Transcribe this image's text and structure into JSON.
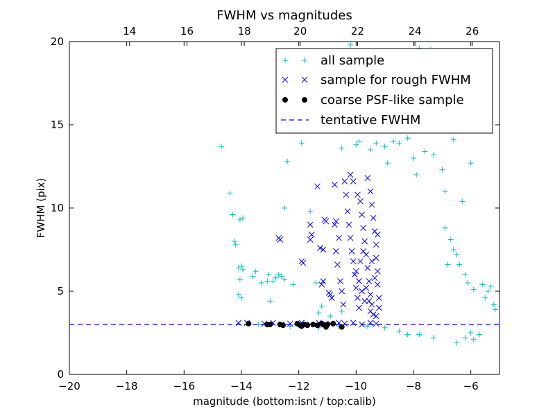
{
  "chart_data": {
    "type": "scatter",
    "title": "FWHM vs magnitudes",
    "xlabel": "magnitude (bottom:isnt / top:calib)",
    "ylabel": "FWHM (pix)",
    "xlim": [
      -20,
      -5
    ],
    "ylim": [
      0,
      20
    ],
    "x_ticks": [
      -20,
      -18,
      -16,
      -14,
      -12,
      -10,
      -8,
      -6
    ],
    "x_tick_labels": [
      "−20",
      "−18",
      "−16",
      "−14",
      "−12",
      "−10",
      "−8",
      "−6"
    ],
    "y_ticks": [
      0,
      5,
      10,
      15,
      20
    ],
    "y_tick_labels": [
      "0",
      "5",
      "10",
      "15",
      "20"
    ],
    "top_axis_ticks": [
      {
        "mag": -17.9,
        "label": "14"
      },
      {
        "mag": -15.9,
        "label": "16"
      },
      {
        "mag": -13.9,
        "label": "18"
      },
      {
        "mag": -11.95,
        "label": "20"
      },
      {
        "mag": -9.95,
        "label": "22"
      },
      {
        "mag": -7.95,
        "label": "24"
      },
      {
        "mag": -5.95,
        "label": "26"
      }
    ],
    "legend_position": "top-right",
    "grid": false,
    "tentative_fwhm": 3.0,
    "series": [
      {
        "name": "all sample",
        "marker": "+",
        "color": "#00bfbf",
        "points": [
          [
            -14.7,
            13.7
          ],
          [
            -14.4,
            10.9
          ],
          [
            -14.3,
            9.6
          ],
          [
            -14.2,
            7.8
          ],
          [
            -14.25,
            8.0
          ],
          [
            -14.1,
            6.4
          ],
          [
            -14.0,
            6.5
          ],
          [
            -13.95,
            6.3
          ],
          [
            -14.05,
            5.7
          ],
          [
            -14.1,
            4.8
          ],
          [
            -14.0,
            4.6
          ],
          [
            -14.05,
            9.3
          ],
          [
            -13.95,
            9.4
          ],
          [
            -13.6,
            5.9
          ],
          [
            -13.5,
            6.2
          ],
          [
            -13.3,
            5.5
          ],
          [
            -13.1,
            5.6
          ],
          [
            -13.05,
            6.0
          ],
          [
            -13.0,
            4.4
          ],
          [
            -12.8,
            5.8
          ],
          [
            -12.6,
            5.9
          ],
          [
            -12.5,
            5.7
          ],
          [
            -12.7,
            6.0
          ],
          [
            -12.9,
            5.6
          ],
          [
            -11.9,
            13.9
          ],
          [
            -12.4,
            12.8
          ],
          [
            -12.5,
            10.0
          ],
          [
            -11.6,
            9.8
          ],
          [
            -12.2,
            5.4
          ],
          [
            -11.4,
            5.5
          ],
          [
            -11.2,
            4.1
          ],
          [
            -10.5,
            3.8
          ],
          [
            -10.9,
            3.5
          ],
          [
            -11.3,
            3.7
          ],
          [
            -10.2,
            19.8
          ],
          [
            -9.7,
            15.9
          ],
          [
            -9.9,
            14.0
          ],
          [
            -9.5,
            13.5
          ],
          [
            -9.3,
            13.9
          ],
          [
            -9.0,
            13.7
          ],
          [
            -8.7,
            14.0
          ],
          [
            -8.5,
            13.9
          ],
          [
            -8.2,
            14.2
          ],
          [
            -8.0,
            13.0
          ],
          [
            -7.6,
            13.4
          ],
          [
            -7.3,
            13.2
          ],
          [
            -7.0,
            12.3
          ],
          [
            -6.6,
            14.1
          ],
          [
            -6.3,
            10.4
          ],
          [
            -6.0,
            12.7
          ],
          [
            -7.8,
            19.6
          ],
          [
            -7.4,
            19.5
          ],
          [
            -7.2,
            18.9
          ],
          [
            -8.4,
            17.0
          ],
          [
            -9.2,
            16.2
          ],
          [
            -10.0,
            13.8
          ],
          [
            -10.5,
            13.6
          ],
          [
            -8.9,
            12.7
          ],
          [
            -7.9,
            12.0
          ],
          [
            -6.9,
            11.0
          ],
          [
            -6.9,
            8.8
          ],
          [
            -6.7,
            8.1
          ],
          [
            -6.6,
            7.5
          ],
          [
            -6.5,
            7.2
          ],
          [
            -6.8,
            6.6
          ],
          [
            -6.4,
            6.6
          ],
          [
            -6.2,
            6.0
          ],
          [
            -6.1,
            5.5
          ],
          [
            -5.9,
            5.1
          ],
          [
            -5.6,
            5.4
          ],
          [
            -5.4,
            5.0
          ],
          [
            -5.3,
            5.3
          ],
          [
            -5.2,
            4.2
          ],
          [
            -5.15,
            3.9
          ],
          [
            -5.5,
            4.6
          ],
          [
            -5.7,
            2.4
          ],
          [
            -6.0,
            2.5
          ],
          [
            -6.2,
            2.2
          ],
          [
            -6.5,
            1.9
          ],
          [
            -5.9,
            2.1
          ],
          [
            -7.3,
            2.2
          ],
          [
            -7.8,
            2.4
          ],
          [
            -8.2,
            2.4
          ],
          [
            -8.5,
            2.6
          ],
          [
            -9.0,
            2.8
          ],
          [
            -9.6,
            2.9
          ],
          [
            -10.6,
            2.9
          ],
          [
            -11.3,
            2.8
          ],
          [
            -12.3,
            2.9
          ],
          [
            -13.4,
            3.0
          ]
        ]
      },
      {
        "name": "sample for rough FWHM",
        "marker": "x",
        "color": "#0000ff",
        "points": [
          [
            -14.1,
            3.1
          ],
          [
            -13.8,
            3.1
          ],
          [
            -13.2,
            3.05
          ],
          [
            -12.9,
            3.1
          ],
          [
            -12.6,
            3.0
          ],
          [
            -12.3,
            3.05
          ],
          [
            -11.9,
            3.1
          ],
          [
            -11.6,
            3.0
          ],
          [
            -11.3,
            3.1
          ],
          [
            -10.9,
            3.05
          ],
          [
            -10.6,
            3.1
          ],
          [
            -10.4,
            3.05
          ],
          [
            -10.1,
            3.1
          ],
          [
            -9.8,
            3.0
          ],
          [
            -9.5,
            3.1
          ],
          [
            -9.3,
            3.05
          ],
          [
            -12.7,
            8.2
          ],
          [
            -12.65,
            8.1
          ],
          [
            -11.9,
            6.8
          ],
          [
            -11.85,
            6.7
          ],
          [
            -11.35,
            11.3
          ],
          [
            -11.6,
            9.0
          ],
          [
            -11.55,
            8.4
          ],
          [
            -11.6,
            8.1
          ],
          [
            -11.25,
            7.6
          ],
          [
            -11.15,
            7.5
          ],
          [
            -11.1,
            9.3
          ],
          [
            -11.05,
            9.2
          ],
          [
            -11.2,
            5.4
          ],
          [
            -11.15,
            5.6
          ],
          [
            -10.9,
            4.8
          ],
          [
            -10.85,
            4.6
          ],
          [
            -10.95,
            4.9
          ],
          [
            -10.75,
            11.4
          ],
          [
            -10.75,
            9.0
          ],
          [
            -10.7,
            9.2
          ],
          [
            -10.6,
            8.2
          ],
          [
            -10.7,
            7.4
          ],
          [
            -10.65,
            6.6
          ],
          [
            -10.55,
            5.6
          ],
          [
            -10.5,
            5.0
          ],
          [
            -10.45,
            4.2
          ],
          [
            -10.4,
            11.6
          ],
          [
            -10.35,
            10.8
          ],
          [
            -10.3,
            9.8
          ],
          [
            -10.25,
            9.0
          ],
          [
            -10.2,
            8.2
          ],
          [
            -10.15,
            7.4
          ],
          [
            -10.1,
            6.8
          ],
          [
            -10.05,
            6.0
          ],
          [
            -10.0,
            5.2
          ],
          [
            -9.95,
            4.6
          ],
          [
            -9.9,
            4.0
          ],
          [
            -10.2,
            12.0
          ],
          [
            -10.1,
            11.6
          ],
          [
            -9.95,
            10.8
          ],
          [
            -9.85,
            10.4
          ],
          [
            -9.8,
            9.6
          ],
          [
            -9.75,
            8.8
          ],
          [
            -9.7,
            8.0
          ],
          [
            -9.65,
            7.2
          ],
          [
            -9.6,
            6.4
          ],
          [
            -9.55,
            5.6
          ],
          [
            -9.5,
            4.8
          ],
          [
            -9.45,
            4.2
          ],
          [
            -9.4,
            3.6
          ],
          [
            -9.6,
            11.8
          ],
          [
            -9.5,
            11.0
          ],
          [
            -9.45,
            10.2
          ],
          [
            -9.4,
            9.4
          ],
          [
            -9.35,
            8.6
          ],
          [
            -9.3,
            7.8
          ],
          [
            -9.3,
            7.0
          ],
          [
            -9.25,
            6.2
          ],
          [
            -9.25,
            5.4
          ],
          [
            -9.2,
            4.6
          ],
          [
            -9.2,
            4.0
          ],
          [
            -9.3,
            3.5
          ],
          [
            -9.5,
            3.8
          ],
          [
            -9.7,
            4.4
          ],
          [
            -9.8,
            5.0
          ],
          [
            -9.9,
            5.6
          ],
          [
            -10.0,
            6.2
          ],
          [
            -9.85,
            6.8
          ],
          [
            -9.75,
            7.4
          ],
          [
            -9.65,
            5.2
          ],
          [
            -9.55,
            4.4
          ],
          [
            -9.45,
            6.8
          ],
          [
            -9.35,
            5.8
          ],
          [
            -9.25,
            8.4
          ]
        ]
      },
      {
        "name": "coarse PSF-like sample",
        "marker": "o",
        "color": "#000000",
        "points": [
          [
            -13.75,
            3.05
          ],
          [
            -13.1,
            3.0
          ],
          [
            -13.0,
            3.0
          ],
          [
            -12.65,
            3.0
          ],
          [
            -12.55,
            2.95
          ],
          [
            -12.05,
            3.05
          ],
          [
            -11.95,
            2.95
          ],
          [
            -11.8,
            3.0
          ],
          [
            -11.7,
            2.95
          ],
          [
            -11.5,
            3.0
          ],
          [
            -11.35,
            2.95
          ],
          [
            -11.2,
            3.05
          ],
          [
            -11.05,
            2.85
          ],
          [
            -11.0,
            3.0
          ],
          [
            -10.8,
            3.05
          ],
          [
            -10.5,
            2.85
          ],
          [
            -11.15,
            3.0
          ],
          [
            -11.9,
            2.9
          ]
        ]
      },
      {
        "name": "tentative FWHM",
        "line": "dashed",
        "color": "#0000ff",
        "y": 3.0
      }
    ]
  }
}
